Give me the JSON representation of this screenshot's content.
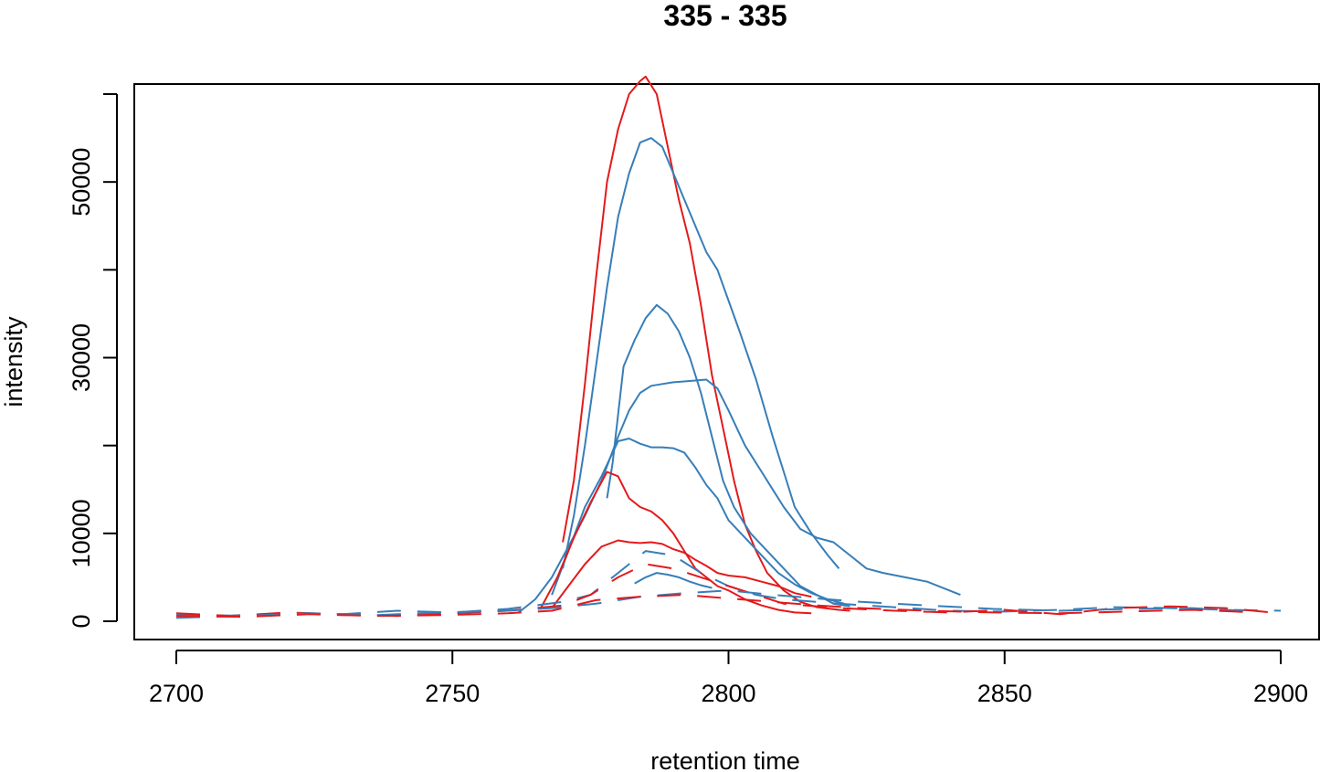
{
  "chart_data": {
    "type": "line",
    "title": "335 - 335",
    "xlabel": "retention time",
    "ylabel": "intensity",
    "xlim": [
      2700,
      2900
    ],
    "ylim": [
      0,
      60000
    ],
    "x_ticks": [
      "2700",
      "2750",
      "2800",
      "2850",
      "2900"
    ],
    "y_ticks": [
      "0",
      "10000",
      "30000",
      "50000"
    ],
    "y_minor_ticks": [
      20000,
      40000,
      60000
    ],
    "grid": false,
    "legend": "none",
    "colors": {
      "red": "#e31a1c",
      "blue": "#377eb8",
      "frame": "#000000"
    },
    "series": [
      {
        "color": "red",
        "style": "solid",
        "x": [
          2770,
          2772,
          2774,
          2776,
          2778,
          2780,
          2782,
          2784,
          2785,
          2787,
          2789,
          2791,
          2793,
          2795,
          2797,
          2799,
          2801,
          2803,
          2805,
          2807,
          2810,
          2813,
          2816,
          2820,
          2822
        ],
        "y": [
          9000,
          16000,
          27000,
          39000,
          50000,
          56000,
          60000,
          61500,
          62000,
          60000,
          54000,
          48000,
          43000,
          36000,
          28000,
          22000,
          16000,
          11000,
          8000,
          5500,
          3500,
          2200,
          1600,
          1300,
          1200
        ]
      },
      {
        "color": "blue",
        "style": "solid",
        "x": [
          2770,
          2772,
          2774,
          2776,
          2778,
          2780,
          2782,
          2784,
          2786,
          2788,
          2790,
          2792,
          2794,
          2796,
          2798,
          2800,
          2802,
          2805,
          2808,
          2810,
          2812,
          2815,
          2818,
          2820
        ],
        "y": [
          6000,
          12000,
          20000,
          29000,
          38000,
          46000,
          51000,
          54500,
          55000,
          54000,
          51000,
          48000,
          45000,
          42000,
          40000,
          36500,
          33000,
          27500,
          21000,
          17000,
          13000,
          10000,
          7500,
          6000
        ]
      },
      {
        "color": "blue",
        "style": "solid",
        "x": [
          2762,
          2765,
          2768,
          2771,
          2774,
          2777,
          2780,
          2782,
          2784,
          2786,
          2788,
          2790,
          2792,
          2794,
          2796,
          2798,
          2800,
          2803,
          2806,
          2808,
          2810,
          2813,
          2816,
          2819,
          2822,
          2825,
          2828,
          2832,
          2836,
          2840,
          2842
        ],
        "y": [
          1000,
          2500,
          5000,
          8500,
          12000,
          16000,
          21000,
          24000,
          26000,
          26800,
          27000,
          27200,
          27300,
          27400,
          27500,
          26500,
          24000,
          20000,
          17000,
          15000,
          13000,
          10500,
          9500,
          9000,
          7500,
          6000,
          5500,
          5000,
          4500,
          3500,
          3000
        ]
      },
      {
        "color": "blue",
        "style": "solid",
        "x": [
          2778,
          2779,
          2781,
          2783,
          2785,
          2787,
          2789,
          2791,
          2793,
          2795,
          2797,
          2799,
          2801,
          2804,
          2807,
          2810,
          2813,
          2816,
          2819,
          2822
        ],
        "y": [
          14000,
          18000,
          29000,
          32000,
          34500,
          36000,
          35000,
          33000,
          30000,
          26000,
          21000,
          16000,
          13000,
          10000,
          8000,
          6000,
          4000,
          3000,
          2000,
          1700
        ]
      },
      {
        "color": "blue",
        "style": "solid",
        "x": [
          2768,
          2771,
          2774,
          2777,
          2780,
          2782,
          2784,
          2786,
          2788,
          2790,
          2792,
          2794,
          2796,
          2798,
          2800,
          2803,
          2806,
          2809,
          2812,
          2815,
          2818,
          2821
        ],
        "y": [
          3000,
          8000,
          13000,
          16500,
          20500,
          20800,
          20200,
          19800,
          19800,
          19700,
          19200,
          17500,
          15500,
          14000,
          11500,
          9500,
          7500,
          5500,
          4200,
          3200,
          2500,
          2000
        ]
      },
      {
        "color": "red",
        "style": "solid",
        "x": [
          2766,
          2769,
          2772,
          2775,
          2778,
          2780,
          2782,
          2784,
          2786,
          2788,
          2790,
          2792,
          2794,
          2796,
          2798,
          2800,
          2803,
          2806,
          2809,
          2812,
          2815
        ],
        "y": [
          1500,
          5000,
          9500,
          13500,
          17000,
          16500,
          14000,
          13000,
          12500,
          11500,
          10000,
          8000,
          6000,
          5000,
          4000,
          3500,
          2500,
          1800,
          1300,
          1000,
          900
        ]
      },
      {
        "color": "red",
        "style": "solid",
        "x": [
          2768,
          2771,
          2774,
          2777,
          2780,
          2782,
          2784,
          2786,
          2788,
          2790,
          2792,
          2794,
          2796,
          2798,
          2800,
          2803,
          2806,
          2809,
          2812,
          2815
        ],
        "y": [
          1500,
          4000,
          6500,
          8500,
          9200,
          9000,
          8900,
          9000,
          8800,
          8200,
          7800,
          7000,
          6300,
          5500,
          5200,
          5000,
          4500,
          4000,
          3200,
          2800
        ]
      },
      {
        "color": "blue",
        "style": "solid",
        "x": [
          2783,
          2785,
          2787,
          2789,
          2791,
          2793,
          2795,
          2797
        ],
        "y": [
          4300,
          5000,
          5500,
          5300,
          5000,
          4500,
          4100,
          3800
        ]
      },
      {
        "color": "blue",
        "style": "dashed",
        "x": [
          2700,
          2710,
          2720,
          2730,
          2740,
          2750,
          2760,
          2765,
          2770,
          2775,
          2780,
          2785,
          2790,
          2795,
          2800,
          2805,
          2810,
          2820,
          2830,
          2840,
          2850,
          2860,
          2870,
          2880,
          2890,
          2900
        ],
        "y": [
          700,
          650,
          900,
          800,
          1200,
          1000,
          1400,
          1800,
          2200,
          3000,
          5500,
          8000,
          7500,
          5500,
          4000,
          3000,
          2500,
          2000,
          1600,
          1200,
          1100,
          1300,
          1600,
          1500,
          1300,
          1200
        ]
      },
      {
        "color": "red",
        "style": "dashed",
        "x": [
          2700,
          2710,
          2720,
          2730,
          2740,
          2750,
          2760,
          2765,
          2770,
          2775,
          2780,
          2785,
          2790,
          2795,
          2800,
          2805,
          2810,
          2820,
          2830,
          2840,
          2850,
          2860,
          2870,
          2880,
          2890,
          2900
        ],
        "y": [
          900,
          600,
          1000,
          800,
          600,
          900,
          1200,
          1500,
          1800,
          3000,
          5000,
          6500,
          6000,
          5000,
          4000,
          3000,
          2000,
          1500,
          1200,
          1000,
          1300,
          800,
          1500,
          1700,
          1500,
          900
        ]
      },
      {
        "color": "blue",
        "style": "dashed",
        "x": [
          2700,
          2712,
          2724,
          2736,
          2748,
          2760,
          2768,
          2776,
          2784,
          2792,
          2800,
          2808,
          2816,
          2824,
          2836,
          2848,
          2860,
          2872,
          2884,
          2896
        ],
        "y": [
          400,
          600,
          900,
          700,
          1000,
          1200,
          1500,
          2000,
          2800,
          3200,
          3500,
          3000,
          2600,
          2200,
          1800,
          1400,
          1200,
          1400,
          1500,
          1100
        ]
      },
      {
        "color": "red",
        "style": "dashed",
        "x": [
          2700,
          2712,
          2724,
          2736,
          2748,
          2760,
          2768,
          2776,
          2784,
          2792,
          2800,
          2808,
          2816,
          2824,
          2836,
          2848,
          2860,
          2872,
          2884,
          2896
        ],
        "y": [
          600,
          500,
          800,
          600,
          700,
          900,
          1200,
          2400,
          2800,
          3000,
          2600,
          2200,
          1800,
          1500,
          1200,
          1000,
          900,
          1100,
          1300,
          1000
        ]
      }
    ]
  }
}
